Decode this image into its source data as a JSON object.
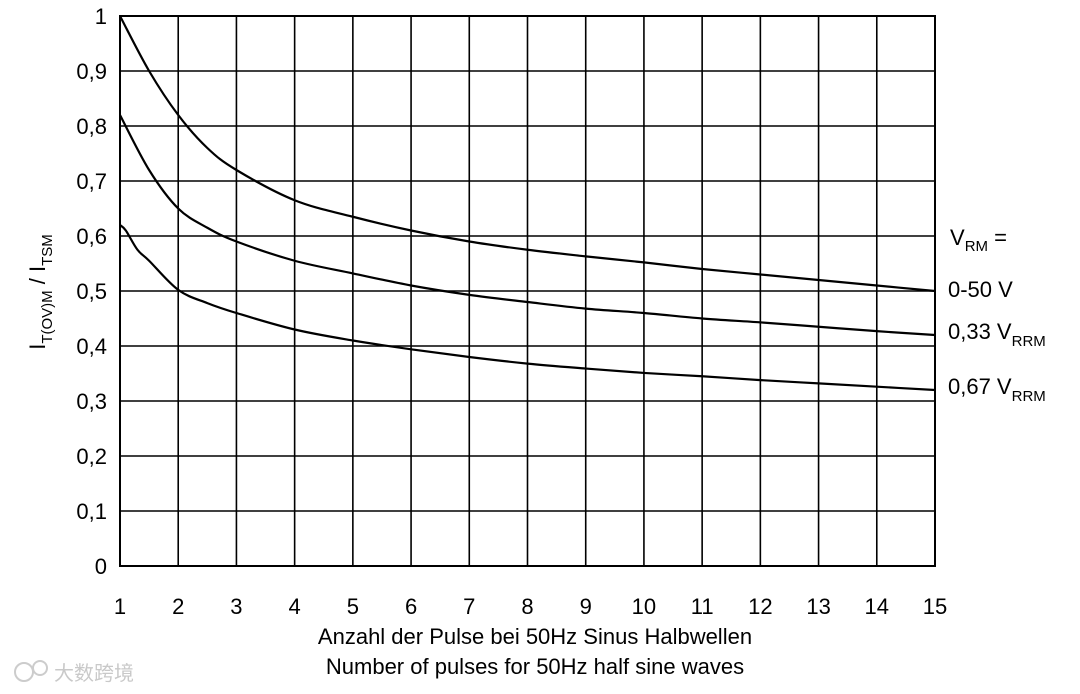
{
  "chart_data": {
    "type": "line",
    "title": "",
    "xlabel_de": "Anzahl der Pulse bei 50Hz Sinus Halbwellen",
    "xlabel_en": "Number of pulses for 50Hz half sine waves",
    "ylabel": {
      "main": "I",
      "sub1": "T(OV)M",
      "sep": " / I",
      "sub2": "TSM"
    },
    "xlim": [
      1,
      15
    ],
    "ylim": [
      0,
      1
    ],
    "x_ticks": [
      "1",
      "2",
      "3",
      "4",
      "5",
      "6",
      "7",
      "8",
      "9",
      "10",
      "11",
      "12",
      "13",
      "14",
      "15"
    ],
    "y_ticks": [
      "0",
      "0,1",
      "0,2",
      "0,3",
      "0,4",
      "0,5",
      "0,6",
      "0,7",
      "0,8",
      "0,9",
      "1"
    ],
    "grid": true,
    "legend_header": {
      "main": "V",
      "sub": "RM",
      "suffix": " ="
    },
    "legend_placement": "right",
    "series": [
      {
        "name": "0-50 V",
        "label_main": "0-50 V",
        "label_sub": "",
        "x": [
          1,
          1.5,
          2,
          2.5,
          3,
          4,
          5,
          6,
          7,
          8,
          9,
          10,
          11,
          12,
          13,
          14,
          15
        ],
        "y": [
          1.0,
          0.9,
          0.82,
          0.76,
          0.72,
          0.665,
          0.635,
          0.61,
          0.59,
          0.575,
          0.563,
          0.552,
          0.54,
          0.53,
          0.52,
          0.51,
          0.5
        ]
      },
      {
        "name": "0,33 VRRM",
        "label_main": "0,33 V",
        "label_sub": "RRM",
        "x": [
          1,
          1.5,
          2,
          2.5,
          3,
          4,
          5,
          6,
          7,
          8,
          9,
          10,
          11,
          12,
          13,
          14,
          15
        ],
        "y": [
          0.82,
          0.72,
          0.65,
          0.615,
          0.59,
          0.555,
          0.532,
          0.51,
          0.493,
          0.48,
          0.468,
          0.46,
          0.45,
          0.443,
          0.435,
          0.427,
          0.42
        ]
      },
      {
        "name": "0,67 VRRM",
        "label_main": "0,67 V",
        "label_sub": "RRM",
        "x": [
          1,
          1.1,
          1.3,
          1.5,
          2,
          2.5,
          3,
          4,
          5,
          6,
          7,
          8,
          9,
          10,
          11,
          12,
          13,
          14,
          15
        ],
        "y": [
          0.62,
          0.61,
          0.575,
          0.555,
          0.502,
          0.478,
          0.46,
          0.43,
          0.41,
          0.394,
          0.38,
          0.368,
          0.359,
          0.351,
          0.345,
          0.338,
          0.332,
          0.326,
          0.32
        ]
      }
    ]
  },
  "watermark": "大数跨境"
}
